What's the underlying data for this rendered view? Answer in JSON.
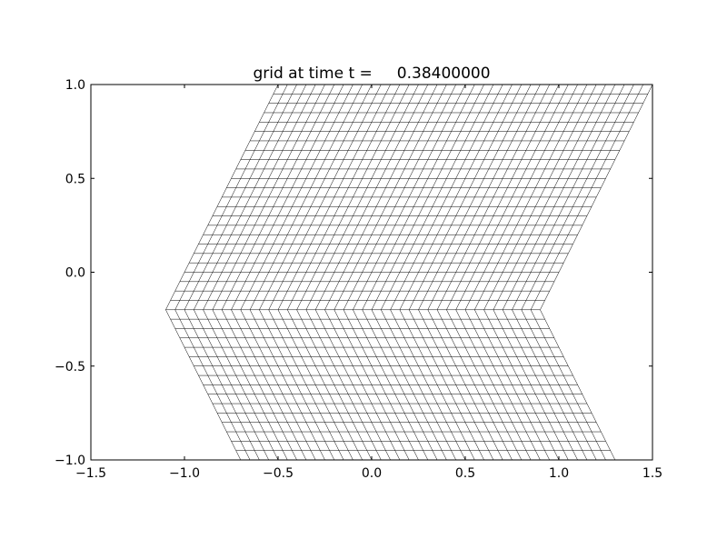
{
  "chart_data": {
    "type": "line",
    "title": "grid at time t =     0.38400000",
    "xlabel": "",
    "ylabel": "",
    "xlim": [
      -1.5,
      1.5
    ],
    "ylim": [
      -1.0,
      1.0
    ],
    "xticks": [
      "−1.5",
      "−1.0",
      "−0.5",
      "0.0",
      "0.5",
      "1.0",
      "1.5"
    ],
    "xtick_values": [
      -1.5,
      -1.0,
      -0.5,
      0.0,
      0.5,
      1.0,
      1.5
    ],
    "yticks": [
      "−1.0",
      "−0.5",
      "0.0",
      "0.5",
      "1.0"
    ],
    "ytick_values": [
      -1.0,
      -0.5,
      0.0,
      0.5,
      1.0
    ],
    "grid": false,
    "mesh": {
      "lines_per_direction": 41,
      "grid_width": 2.0,
      "y_range": [
        -1.0,
        1.0
      ],
      "left_edge": [
        [
          -0.5,
          1.0
        ],
        [
          -1.1,
          -0.2
        ],
        [
          -0.7,
          -1.0
        ]
      ],
      "line_color": "#000000"
    }
  }
}
